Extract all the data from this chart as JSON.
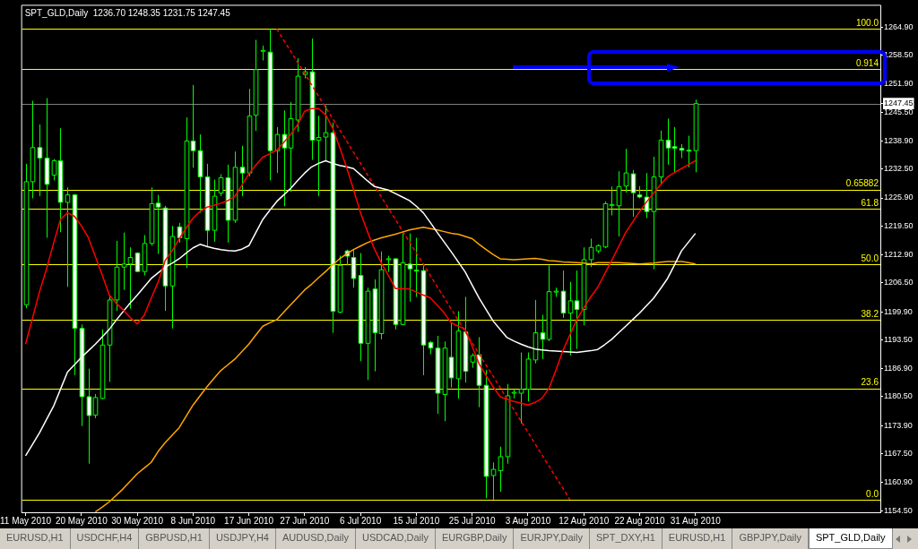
{
  "chart_data": {
    "type": "candlestick",
    "title": "SPT_GLD,Daily  1236.70 1248.35 1231.75 1247.45",
    "colors": [
      "#000000",
      "#000000",
      "#ffffff",
      "#ffffff",
      "#000000",
      "#ffffff",
      "#000000",
      "#ffffff",
      "#ffffff",
      "#ffffff",
      "#000000",
      "#000000",
      "#000000",
      "#000000",
      "#000000",
      "#000000",
      "#ffffff",
      "#000000",
      "#000000",
      "#ffffff",
      "#ffffff",
      "#000000",
      "#ffffff",
      "#000000",
      "#ffffff",
      "#ffffff",
      "#ffffff",
      "#000000",
      "#000000",
      "#ffffff",
      "#000000",
      "#ffffff",
      "#000000",
      "#000000",
      "#000000",
      "#ffffff",
      "#000000",
      "#ffffff",
      "#000000",
      "#000000",
      "#000000",
      "#ffffff",
      "#000000",
      "#000000",
      "#ffffff",
      "#000000",
      "#ffffff",
      "#ffffff",
      "#ffffff",
      "#000000",
      "#ffffff",
      "#000000",
      "#000000",
      "#ffffff",
      "#000000",
      "#ffffff",
      "#ffffff",
      "#ffffff",
      "#ffffff",
      "#ffffff",
      "#000000",
      "#ffffff",
      "#000000",
      "#ffffff",
      "#000000",
      "#ffffff",
      "#ffffff",
      "#000000",
      "#000000",
      "#000000",
      "#000000",
      "#000000",
      "#000000",
      "#000000",
      "#ffffff",
      "#000000",
      "#000000",
      "#ffffff",
      "#000000",
      "#ffffff",
      "#000000",
      "#000000",
      "#000000",
      "#000000",
      "#000000",
      "#000000",
      "#000000",
      "#ffffff",
      "#ffffff",
      "#ffffff",
      "#000000",
      "#000000",
      "#ffffff",
      "#ffffff",
      "#ffffff",
      "#ffffff",
      "#000000"
    ],
    "categories": [
      "11 May 2010",
      null,
      null,
      null,
      null,
      null,
      null,
      null,
      "20 May 2010",
      null,
      null,
      null,
      null,
      null,
      null,
      null,
      "30 May 2010",
      null,
      null,
      null,
      null,
      null,
      null,
      null,
      "8 Jun 2010",
      null,
      null,
      null,
      null,
      null,
      null,
      null,
      "17 Jun 2010",
      null,
      null,
      null,
      null,
      null,
      null,
      null,
      "27 Jun 2010",
      null,
      null,
      null,
      null,
      null,
      null,
      null,
      "6 Jul 2010",
      null,
      null,
      null,
      null,
      null,
      null,
      null,
      "15 Jul 2010",
      null,
      null,
      null,
      null,
      null,
      null,
      null,
      "25 Jul 2010",
      null,
      null,
      null,
      null,
      null,
      null,
      null,
      "3 Aug 2010",
      null,
      null,
      null,
      null,
      null,
      null,
      null,
      "12 Aug 2010",
      null,
      null,
      null,
      null,
      null,
      null,
      null,
      "22 Aug 2010",
      null,
      null,
      null,
      null,
      null,
      null,
      null,
      "31 Aug 2010"
    ],
    "ohlc": [
      [
        1201.5,
        1233.7,
        1200.7,
        1229.6
      ],
      [
        1229.6,
        1248.1,
        1225.8,
        1237.4
      ],
      [
        1237.4,
        1242.7,
        1226.3,
        1235.0
      ],
      [
        1235.0,
        1248.7,
        1216.8,
        1229.0
      ],
      [
        1231.1,
        1234.8,
        1229.9,
        1234.4
      ],
      [
        1234.4,
        1241.8,
        1218.1,
        1224.9
      ],
      [
        1224.9,
        1228.3,
        1205.6,
        1226.6
      ],
      [
        1226.6,
        1226.8,
        1185.4,
        1196.1
      ],
      [
        1196.1,
        1197.0,
        1173.8,
        1180.5
      ],
      [
        1180.5,
        1186.9,
        1165.2,
        1176.2
      ],
      [
        1176.3,
        1181.1,
        1175.6,
        1180.3
      ],
      [
        1180.1,
        1195.9,
        1179.9,
        1192.3
      ],
      [
        1192.3,
        1203.7,
        1183.9,
        1202.6
      ],
      [
        1202.6,
        1216.1,
        1200.1,
        1210.1
      ],
      [
        1210.1,
        1218.0,
        1204.9,
        1210.8
      ],
      [
        1210.8,
        1214.6,
        1200.6,
        1212.3
      ],
      [
        1213.3,
        1213.5,
        1209.0,
        1209.1
      ],
      [
        1209.1,
        1217.4,
        1208.2,
        1215.5
      ],
      [
        1215.5,
        1228.3,
        1215.0,
        1224.6
      ],
      [
        1224.7,
        1226.6,
        1213.1,
        1223.8
      ],
      [
        1223.6,
        1224.1,
        1200.1,
        1205.8
      ],
      [
        1205.8,
        1219.5,
        1196.1,
        1217.1
      ],
      [
        1219.3,
        1220.2,
        1215.7,
        1216.8
      ],
      [
        1216.6,
        1244.3,
        1209.9,
        1238.9
      ],
      [
        1238.9,
        1251.7,
        1232.8,
        1236.7
      ],
      [
        1236.7,
        1240.4,
        1222.5,
        1230.7
      ],
      [
        1230.7,
        1233.7,
        1214.6,
        1218.5
      ],
      [
        1218.5,
        1230.1,
        1215.9,
        1226.3
      ],
      [
        1227.0,
        1231.3,
        1226.3,
        1230.5
      ],
      [
        1230.5,
        1233.5,
        1215.7,
        1220.8
      ],
      [
        1220.8,
        1236.5,
        1220.2,
        1232.9
      ],
      [
        1232.9,
        1237.8,
        1226.3,
        1231.6
      ],
      [
        1231.6,
        1250.8,
        1230.8,
        1244.6
      ],
      [
        1244.8,
        1262.0,
        1241.2,
        1255.2
      ],
      [
        1259.5,
        1260.7,
        1257.3,
        1259.6
      ],
      [
        1259.2,
        1264.5,
        1229.9,
        1236.7
      ],
      [
        1236.7,
        1242.1,
        1231.6,
        1240.4
      ],
      [
        1240.4,
        1245.9,
        1224.0,
        1237.3
      ],
      [
        1237.3,
        1247.8,
        1227.3,
        1244.0
      ],
      [
        1243.7,
        1257.8,
        1241.0,
        1253.7
      ],
      [
        1254.1,
        1255.8,
        1253.2,
        1254.7
      ],
      [
        1254.7,
        1262.3,
        1234.6,
        1239.1
      ],
      [
        1239.1,
        1244.7,
        1226.3,
        1239.7
      ],
      [
        1239.8,
        1247.0,
        1234.4,
        1240.8
      ],
      [
        1240.8,
        1243.1,
        1195.1,
        1200.0
      ],
      [
        1199.8,
        1212.7,
        1199.6,
        1210.5
      ],
      [
        1213.8,
        1214.1,
        1210.5,
        1212.6
      ],
      [
        1212.3,
        1214.2,
        1205.4,
        1207.5
      ],
      [
        1208.2,
        1213.3,
        1188.6,
        1192.7
      ],
      [
        1192.7,
        1205.4,
        1184.3,
        1204.6
      ],
      [
        1205.1,
        1207.3,
        1186.3,
        1195.1
      ],
      [
        1194.9,
        1213.7,
        1193.6,
        1209.5
      ],
      [
        1211.8,
        1212.7,
        1209.0,
        1212.0
      ],
      [
        1212.0,
        1212.1,
        1195.9,
        1197.0
      ],
      [
        1197.0,
        1217.8,
        1196.8,
        1211.1
      ],
      [
        1210.8,
        1217.8,
        1202.2,
        1209.7
      ],
      [
        1209.4,
        1216.8,
        1203.3,
        1209.3
      ],
      [
        1209.3,
        1210.5,
        1185.4,
        1192.3
      ],
      [
        1192.9,
        1193.2,
        1190.2,
        1191.6
      ],
      [
        1191.6,
        1194.4,
        1176.6,
        1181.3
      ],
      [
        1181.0,
        1193.1,
        1174.9,
        1191.6
      ],
      [
        1189.5,
        1197.4,
        1182.6,
        1184.8
      ],
      [
        1184.6,
        1200.0,
        1180.1,
        1195.5
      ],
      [
        1195.3,
        1203.3,
        1183.7,
        1186.3
      ],
      [
        1188.4,
        1190.4,
        1187.1,
        1189.9
      ],
      [
        1190.1,
        1194.1,
        1178.1,
        1183.1
      ],
      [
        1183.1,
        1186.6,
        1157.3,
        1162.3
      ],
      [
        1162.5,
        1165.5,
        1157.0,
        1163.9
      ],
      [
        1163.6,
        1169.1,
        1158.8,
        1166.8
      ],
      [
        1166.8,
        1183.4,
        1165.2,
        1180.7
      ],
      [
        1181.3,
        1182.2,
        1180.1,
        1181.5
      ],
      [
        1181.3,
        1190.6,
        1174.4,
        1182.2
      ],
      [
        1182.2,
        1190.6,
        1179.4,
        1189.1
      ],
      [
        1188.9,
        1202.6,
        1188.1,
        1195.1
      ],
      [
        1195.1,
        1199.2,
        1189.1,
        1193.6
      ],
      [
        1193.6,
        1210.5,
        1193.2,
        1204.5
      ],
      [
        1204.5,
        1205.4,
        1203.3,
        1204.6
      ],
      [
        1204.6,
        1209.3,
        1198.5,
        1199.6
      ],
      [
        1199.6,
        1206.7,
        1189.9,
        1202.4
      ],
      [
        1202.4,
        1209.3,
        1191.4,
        1200.4
      ],
      [
        1200.4,
        1214.6,
        1196.8,
        1211.8
      ],
      [
        1211.8,
        1216.6,
        1210.1,
        1214.6
      ],
      [
        1213.8,
        1215.3,
        1213.3,
        1215.0
      ],
      [
        1214.7,
        1225.1,
        1214.4,
        1224.6
      ],
      [
        1224.3,
        1228.5,
        1221.9,
        1224.4
      ],
      [
        1224.1,
        1232.0,
        1217.1,
        1228.5
      ],
      [
        1228.6,
        1237.1,
        1227.1,
        1231.6
      ],
      [
        1231.4,
        1232.3,
        1221.6,
        1227.1
      ],
      [
        1226.6,
        1228.6,
        1225.8,
        1226.1
      ],
      [
        1226.1,
        1231.6,
        1221.3,
        1222.8
      ],
      [
        1222.8,
        1235.3,
        1209.6,
        1230.7
      ],
      [
        1230.7,
        1241.3,
        1229.0,
        1239.1
      ],
      [
        1239.1,
        1244.0,
        1233.5,
        1237.3
      ],
      [
        1237.6,
        1242.1,
        1231.8,
        1237.2
      ],
      [
        1237.2,
        1238.2,
        1235.0,
        1236.8
      ],
      [
        1236.8,
        1240.1,
        1232.9,
        1236.7
      ],
      [
        1236.7,
        1248.35,
        1231.75,
        1247.45
      ]
    ],
    "series": [
      {
        "type": "line",
        "color": "#ff0000",
        "values": [
          1192.5,
          1198.5,
          1204.5,
          1209.7,
          1215.5,
          1221.0,
          1222.5,
          1221.7,
          1219.5,
          1216.8,
          1212.5,
          1208.2,
          1203.7,
          1201.8,
          1200.3,
          1198.6,
          1197.1,
          1199.1,
          1203.0,
          1206.7,
          1211.6,
          1213.8,
          1216.5,
          1219.0,
          1221.3,
          1222.8,
          1223.8,
          1224.2,
          1224.7,
          1225.3,
          1226.3,
          1228.8,
          1231.4,
          1233.4,
          1235.2,
          1236.0,
          1236.8,
          1238.6,
          1240.4,
          1242.7,
          1245.7,
          1246.3,
          1246.3,
          1244.9,
          1241.9,
          1237.5,
          1232.9,
          1227.8,
          1222.5,
          1218.2,
          1214.2,
          1211.0,
          1208.2,
          1205.2,
          1205.2,
          1205.1,
          1204.4,
          1203.7,
          1203.1,
          1201.4,
          1199.6,
          1197.4,
          1196.6,
          1195.9,
          1192.0,
          1188.0,
          1185.3,
          1182.8,
          1180.5,
          1179.9,
          1179.4,
          1179.0,
          1178.6,
          1179.2,
          1180.1,
          1182.4,
          1186.5,
          1191.0,
          1194.6,
          1198.1,
          1200.8,
          1203.3,
          1205.5,
          1208.6,
          1211.6,
          1214.8,
          1218.0,
          1220.4,
          1222.8,
          1225.0,
          1227.0,
          1228.9,
          1230.7,
          1231.7,
          1232.6,
          1233.5,
          1234.4
        ]
      },
      {
        "type": "line",
        "color": "#ffffff",
        "values": [
          1167.0,
          1169.6,
          1172.3,
          1175.3,
          1178.3,
          1182.2,
          1186.1,
          1187.8,
          1189.5,
          1191.0,
          1192.5,
          1194.2,
          1195.9,
          1198.0,
          1200.0,
          1201.9,
          1203.7,
          1205.6,
          1207.5,
          1208.8,
          1210.1,
          1211.0,
          1212.0,
          1213.3,
          1214.5,
          1215.3,
          1214.8,
          1214.4,
          1214.1,
          1213.9,
          1213.8,
          1214.2,
          1215.0,
          1218.0,
          1221.0,
          1223.1,
          1225.1,
          1226.6,
          1228.1,
          1229.9,
          1231.6,
          1233.0,
          1233.8,
          1234.4,
          1233.8,
          1233.3,
          1233.0,
          1232.6,
          1231.2,
          1229.8,
          1228.5,
          1228.1,
          1227.7,
          1226.9,
          1226.1,
          1225.3,
          1224.0,
          1222.5,
          1220.3,
          1218.0,
          1215.8,
          1213.6,
          1211.3,
          1209.0,
          1206.0,
          1203.0,
          1200.4,
          1197.8,
          1195.9,
          1194.0,
          1193.2,
          1192.5,
          1191.9,
          1191.4,
          1191.2,
          1191.0,
          1190.9,
          1190.8,
          1190.7,
          1190.6,
          1190.8,
          1191.0,
          1191.3,
          1192.4,
          1193.6,
          1195.1,
          1196.6,
          1198.1,
          1199.6,
          1201.3,
          1203.0,
          1205.2,
          1207.5,
          1210.6,
          1213.8,
          1215.8,
          1217.8
        ]
      },
      {
        "type": "line",
        "color": "#ffa500",
        "values": [
          null,
          null,
          null,
          null,
          null,
          null,
          null,
          null,
          null,
          null,
          1154.2,
          1155.3,
          1156.5,
          1158.0,
          1159.5,
          1161.2,
          1162.9,
          1164.2,
          1165.5,
          1168.0,
          1170.0,
          1171.7,
          1173.4,
          1176.0,
          1178.6,
          1180.7,
          1182.8,
          1184.7,
          1186.5,
          1187.8,
          1189.1,
          1190.8,
          1192.5,
          1194.6,
          1196.6,
          1197.4,
          1198.1,
          1199.8,
          1201.5,
          1203.2,
          1204.9,
          1206.2,
          1207.7,
          1209.1,
          1210.6,
          1212.0,
          1213.1,
          1214.1,
          1214.9,
          1215.7,
          1216.3,
          1216.8,
          1217.2,
          1217.6,
          1218.1,
          1218.6,
          1218.9,
          1219.2,
          1218.9,
          1218.6,
          1218.2,
          1217.8,
          1217.6,
          1217.1,
          1216.6,
          1215.3,
          1214.1,
          1213.0,
          1212.0,
          1211.9,
          1211.8,
          1211.9,
          1212.0,
          1212.1,
          1211.9,
          1211.6,
          1211.5,
          1211.3,
          1211.2,
          1211.1,
          1211.0,
          1210.8,
          1211.1,
          1211.1,
          1211.1,
          1211.1,
          1211.0,
          1210.9,
          1210.8,
          1210.9,
          1211.0,
          1211.2,
          1211.4,
          1211.4,
          1211.4,
          1211.1,
          1210.8
        ]
      },
      {
        "type": "line",
        "color": "#ff0000",
        "line_style": "dashed",
        "values": [
          null,
          null,
          null,
          null,
          null,
          null,
          null,
          null,
          null,
          null,
          null,
          null,
          null,
          null,
          null,
          null,
          null,
          null,
          null,
          null,
          null,
          null,
          null,
          null,
          null,
          null,
          null,
          null,
          null,
          null,
          null,
          null,
          null,
          null,
          null,
          null,
          1264.5,
          1261.9,
          1259.4,
          1256.8,
          1254.3,
          1251.7,
          1249.1,
          1246.6,
          1244.0,
          1241.5,
          1238.9,
          1236.3,
          1233.8,
          1231.2,
          1228.7,
          1226.1,
          1223.5,
          1221.0,
          1218.4,
          1215.9,
          1213.3,
          1210.8,
          1208.2,
          1205.6,
          1203.1,
          1200.5,
          1198.0,
          1195.4,
          1192.8,
          1190.3,
          1187.7,
          1185.2,
          1182.6,
          1180.0,
          1177.5,
          1174.9,
          1172.4,
          1169.8,
          1167.2,
          1164.7,
          1162.1,
          1159.6,
          1157.0,
          null,
          null,
          null,
          null,
          null,
          null,
          null,
          null,
          null,
          null,
          null,
          null,
          null,
          null,
          null,
          null,
          null,
          null
        ]
      }
    ],
    "ylim": [
      1154.1,
      1269.8
    ],
    "yticks": [
      {
        "value": 1264.9,
        "label": "1264.90"
      },
      {
        "value": 1258.5,
        "label": "1258.50"
      },
      {
        "value": 1251.9,
        "label": "1251.90"
      },
      1247.45,
      {
        "value": 1245.5,
        "label": "1245.50"
      },
      {
        "value": 1238.9,
        "label": "1238.90"
      },
      {
        "value": 1232.5,
        "label": "1232.50"
      },
      {
        "value": 1225.9,
        "label": "1225.90"
      },
      {
        "value": 1219.5,
        "label": "1219.50"
      },
      {
        "value": 1212.9,
        "label": "1212.90"
      },
      {
        "value": 1206.5,
        "label": "1206.50"
      },
      {
        "value": 1199.9,
        "label": "1199.90"
      },
      {
        "value": 1193.5,
        "label": "1193.50"
      },
      {
        "value": 1186.9,
        "label": "1186.90"
      },
      {
        "value": 1180.5,
        "label": "1180.50"
      },
      {
        "value": 1173.9,
        "label": "1173.90"
      },
      {
        "value": 1167.5,
        "label": "1167.50"
      },
      {
        "value": 1160.9,
        "label": "1160.90"
      },
      {
        "value": 1154.5,
        "label": "1154.50"
      }
    ],
    "ref_lines": [
      {
        "axis": "y",
        "value": 1264.5,
        "color": "#ffff00"
      },
      {
        "axis": "y",
        "value": 1255.3,
        "color": "#ffff00"
      },
      {
        "axis": "y",
        "value": 1247.45,
        "color": "#808080"
      },
      {
        "axis": "y",
        "value": 1227.8,
        "color": "#ffff00"
      },
      {
        "axis": "y",
        "value": 1223.4,
        "color": "#ffff00"
      },
      {
        "axis": "y",
        "value": 1210.75,
        "color": "#ffff00"
      },
      {
        "axis": "y",
        "value": 1198.1,
        "color": "#ffff00"
      },
      {
        "axis": "y",
        "value": 1182.4,
        "color": "#ffff00"
      },
      {
        "axis": "y",
        "value": 1157.0,
        "color": "#ffff00"
      }
    ],
    "annotations": [
      {
        "text": "100.0",
        "y": 1264.5
      },
      {
        "text": "0.914",
        "y": 1255.3
      },
      {
        "text": "0.65882",
        "y": 1227.8
      },
      {
        "text": "61.8",
        "y": 1223.4
      },
      {
        "text": "50.0",
        "y": 1210.75
      },
      {
        "text": "38.2",
        "y": 1198.1
      },
      {
        "text": "23.6",
        "y": 1182.4
      },
      {
        "text": "0.0",
        "y": 1157.0
      },
      "EURUSD,H1",
      "USDCHF,H4",
      "GBPUSD,H1",
      "USDJPY,H4",
      "AUDUSD,Daily",
      "USDCAD,Daily",
      "EURGBP,Daily",
      "EURJPY,Daily",
      "SPT_DXY,H1",
      "EURUSD,H1",
      "GBPJPY,Daily",
      "SPT_GLD,Daily"
    ]
  }
}
